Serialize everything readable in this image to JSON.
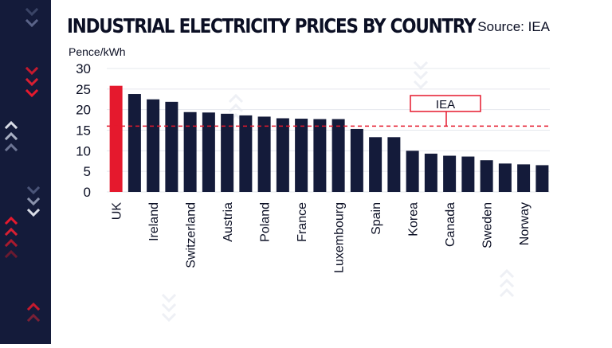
{
  "header": {
    "title": "INDUSTRIAL ELECTRICITY PRICES BY COUNTRY",
    "source": "Source: IEA"
  },
  "colors": {
    "bar": "#141b3a",
    "highlight": "#e5192d",
    "reference": "#e5192d",
    "strip": "#141b3a"
  },
  "chart_data": {
    "type": "bar",
    "title": "INDUSTRIAL ELECTRICITY PRICES BY COUNTRY",
    "ylabel": "Pence/kWh",
    "xlabel": "",
    "ylim": [
      0,
      30
    ],
    "yticks": [
      0,
      5,
      10,
      15,
      20,
      25,
      30
    ],
    "grid": true,
    "categories": [
      "UK",
      "",
      "Ireland",
      "",
      "Switzerland",
      "",
      "Austria",
      "",
      "Poland",
      "",
      "France",
      "",
      "Luxembourg",
      "",
      "Spain",
      "",
      "Korea",
      "",
      "Canada",
      "",
      "Sweden",
      "",
      "Norway",
      ""
    ],
    "values": [
      25.8,
      23.8,
      22.5,
      21.9,
      19.4,
      19.3,
      19.0,
      18.6,
      18.3,
      17.9,
      17.8,
      17.7,
      17.7,
      15.3,
      13.3,
      13.3,
      10.0,
      9.3,
      8.8,
      8.6,
      7.7,
      6.9,
      6.7,
      6.5
    ],
    "highlight_index": 0,
    "reference_line": {
      "label": "IEA",
      "value": 16
    }
  }
}
